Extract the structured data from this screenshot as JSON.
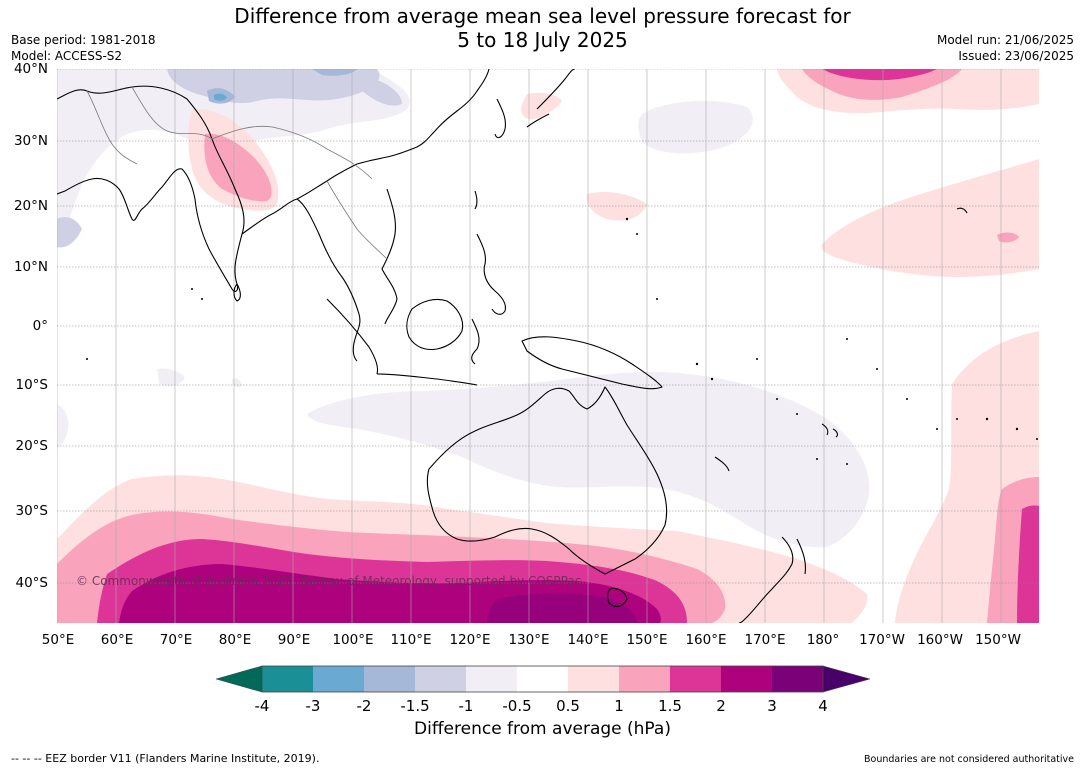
{
  "title": {
    "line1": "Difference from average mean sea level pressure forecast for",
    "line2": "5 to 18 July 2025"
  },
  "meta_left": {
    "base_period": "Base period: 1981-2018",
    "model": "Model: ACCESS-S2"
  },
  "meta_right": {
    "model_run": "Model run: 21/06/2025",
    "issued": "Issued: 23/06/2025"
  },
  "lat_labels": [
    "40°N",
    "30°N",
    "20°N",
    "10°N",
    "0°",
    "10°S",
    "20°S",
    "30°S",
    "40°S"
  ],
  "lon_labels": [
    "50°E",
    "60°E",
    "70°E",
    "80°E",
    "90°E",
    "100°E",
    "110°E",
    "120°E",
    "130°E",
    "140°E",
    "150°E",
    "160°E",
    "170°E",
    "180°",
    "170°W",
    "160°W",
    "150°W"
  ],
  "colorbar": {
    "title": "Difference from average (hPa)",
    "tick_labels": [
      "-4",
      "-3",
      "-2",
      "-1.5",
      "-1",
      "-0.5",
      "0.5",
      "1",
      "1.5",
      "2",
      "3",
      "4"
    ],
    "colors": {
      "below_min": "#006a5a",
      "m4_m3": "#1b8f96",
      "m3_m2": "#6aaad2",
      "m2_m15": "#a6b8d8",
      "m15_m1": "#cfd0e4",
      "m1_m05": "#f1eef5",
      "m05_05": "#ffffff",
      "p05_1": "#fde0df",
      "p1_15": "#f9a3bc",
      "p15_2": "#dd3497",
      "p2_3": "#ae017e",
      "p3_4": "#7a0177",
      "above_max": "#49006a"
    }
  },
  "copyright": "© Commonwealth of Australia 2025, Bureau of Meteorology, supported by COSPPac",
  "footer_left": "--  --  -- EEZ border V11 (Flanders Marine Institute, 2019).",
  "footer_right": "Boundaries are not considered authoritative"
}
